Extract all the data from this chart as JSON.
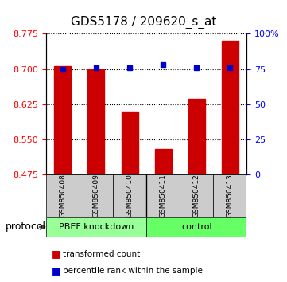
{
  "title": "GDS5178 / 209620_s_at",
  "samples": [
    "GSM850408",
    "GSM850409",
    "GSM850410",
    "GSM850411",
    "GSM850412",
    "GSM850413"
  ],
  "transformed_count": [
    8.706,
    8.7,
    8.61,
    8.53,
    8.637,
    8.76
  ],
  "percentile_rank": [
    75,
    76,
    76,
    78,
    76,
    76
  ],
  "ylim_left": [
    8.475,
    8.775
  ],
  "ylim_right": [
    0,
    100
  ],
  "yticks_left": [
    8.475,
    8.55,
    8.625,
    8.7,
    8.775
  ],
  "yticks_right": [
    0,
    25,
    50,
    75,
    100
  ],
  "bar_color": "#cc0000",
  "dot_color": "#0000cc",
  "bar_baseline": 8.475,
  "groups": [
    {
      "label": "PBEF knockdown",
      "indices": [
        0,
        1,
        2
      ],
      "color": "#99ff99"
    },
    {
      "label": "control",
      "indices": [
        3,
        4,
        5
      ],
      "color": "#66ff66"
    }
  ],
  "group_row_color": "#cccccc",
  "protocol_label": "protocol",
  "legend_items": [
    {
      "label": "transformed count",
      "color": "#cc0000",
      "marker": "s"
    },
    {
      "label": "percentile rank within the sample",
      "color": "#0000cc",
      "marker": "s"
    }
  ],
  "figsize": [
    3.61,
    3.54
  ],
  "dpi": 100
}
